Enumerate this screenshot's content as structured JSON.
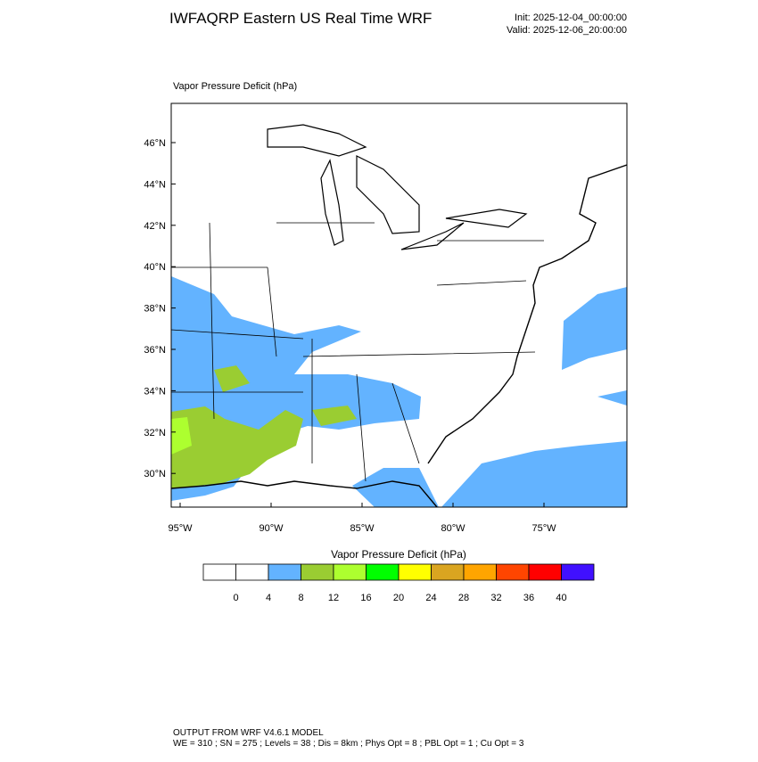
{
  "header": {
    "title": "IWFAQRP Eastern US Real Time WRF",
    "init": "Init: 2025-12-04_00:00:00",
    "valid": "Valid: 2025-12-06_20:00:00"
  },
  "map": {
    "field_label": "Vapor Pressure Deficit   (hPa)",
    "lat_labels": [
      "46°N",
      "44°N",
      "42°N",
      "40°N",
      "38°N",
      "36°N",
      "34°N",
      "32°N",
      "30°N"
    ],
    "lon_labels": [
      "95°W",
      "90°W",
      "85°W",
      "80°W",
      "75°W"
    ]
  },
  "colorbar": {
    "title": "Vapor Pressure Deficit  (hPa)",
    "colors": [
      "#ffffff",
      "#ffffff",
      "#63b3ff",
      "#9acd32",
      "#adff2f",
      "#00ff00",
      "#ffff00",
      "#daa520",
      "#ffa500",
      "#ff4500",
      "#ff0000",
      "#4010ff"
    ],
    "labels": [
      "0",
      "4",
      "8",
      "12",
      "16",
      "20",
      "24",
      "28",
      "32",
      "36",
      "40"
    ]
  },
  "footer": {
    "line1": "OUTPUT FROM WRF V4.6.1 MODEL",
    "line2": "WE = 310 ; SN = 275 ; Levels = 38 ; Dis = 8km ; Phys Opt = 8 ; PBL Opt = 1 ; Cu Opt = 3"
  }
}
